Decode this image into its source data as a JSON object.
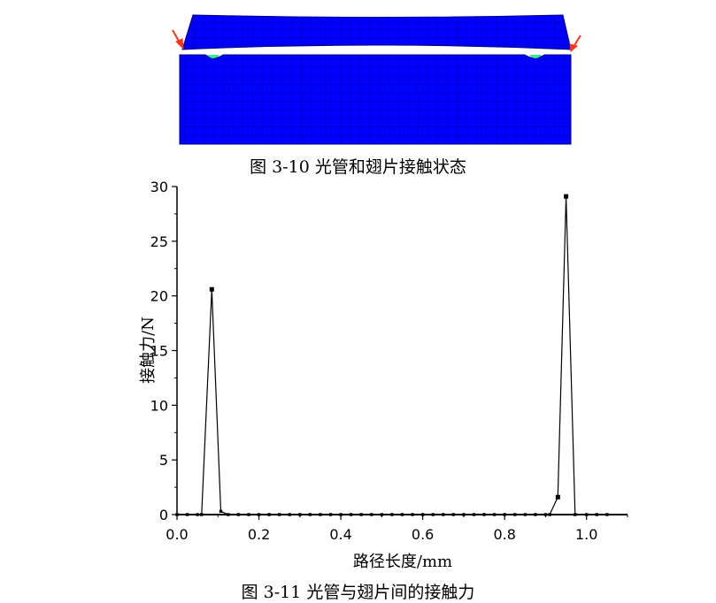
{
  "figure1": {
    "caption": "图 3-10  光管和翅片接触状态",
    "colors": {
      "mesh": "#0000ff",
      "mesh_line": "#000088",
      "contact": "#33ee88",
      "arrow": "#ff3311"
    }
  },
  "figure2": {
    "caption": "图 3-11  光管与翅片间的接触力"
  },
  "chart_data": {
    "type": "line",
    "title": "",
    "xlabel": "路径长度/mm",
    "ylabel": "接触力/N",
    "xlim": [
      0.0,
      1.1
    ],
    "ylim": [
      0,
      30
    ],
    "xticks": [
      "0.0",
      "0.2",
      "0.4",
      "0.6",
      "0.8",
      "1.0"
    ],
    "yticks": [
      "0",
      "5",
      "10",
      "15",
      "20",
      "25",
      "30"
    ],
    "grid": false,
    "series": [
      {
        "x": [
          0.0,
          0.025,
          0.05,
          0.06,
          0.085,
          0.107,
          0.125,
          0.15,
          0.175,
          0.2,
          0.225,
          0.25,
          0.275,
          0.3,
          0.325,
          0.35,
          0.375,
          0.4,
          0.425,
          0.45,
          0.475,
          0.5,
          0.525,
          0.55,
          0.575,
          0.6,
          0.625,
          0.65,
          0.675,
          0.7,
          0.725,
          0.75,
          0.775,
          0.8,
          0.825,
          0.85,
          0.875,
          0.9,
          0.91,
          0.93,
          0.95,
          0.972,
          1.0,
          1.025,
          1.05
        ],
        "y": [
          0,
          0,
          0,
          0,
          20.6,
          0.3,
          0,
          0,
          0,
          0,
          0,
          0,
          0,
          0,
          0,
          0,
          0,
          0,
          0,
          0,
          0,
          0,
          0,
          0,
          0,
          0,
          0,
          0,
          0,
          0,
          0,
          0,
          0,
          0,
          0,
          0,
          0,
          0,
          0,
          1.6,
          29.1,
          0,
          0,
          0,
          0
        ],
        "color": "#000000"
      }
    ]
  }
}
